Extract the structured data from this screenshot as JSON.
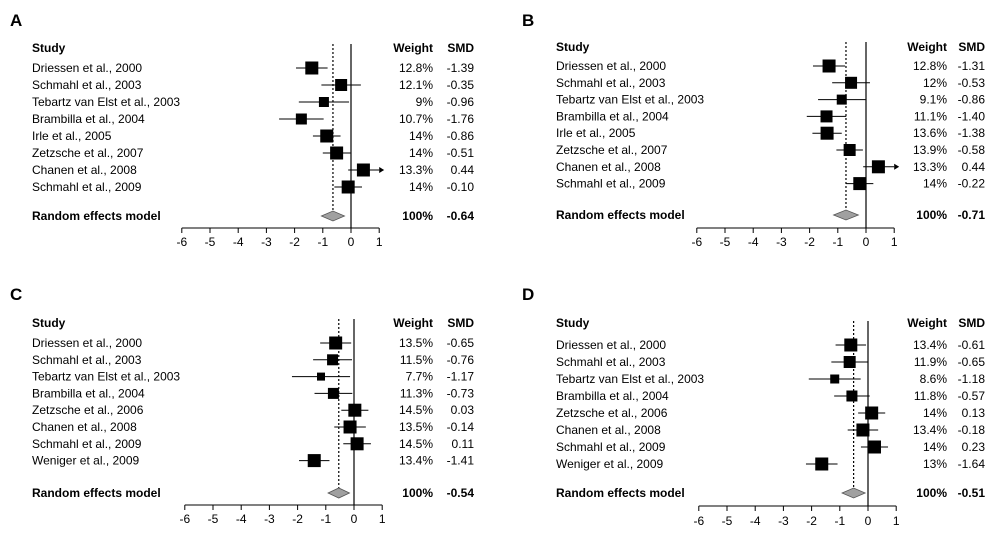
{
  "chart_data": [
    {
      "type": "forest",
      "panel_label": "A",
      "headers": {
        "study": "Study",
        "weight": "Weight",
        "smd": "SMD"
      },
      "xticks": [
        -6,
        -5,
        -4,
        -3,
        -2,
        -1,
        0,
        1
      ],
      "xlim": [
        -6,
        1
      ],
      "null_line": 0,
      "studies": [
        {
          "name": "Driessen et al., 2000",
          "weight": "12.8%",
          "smd": "-1.39",
          "value": -1.39,
          "lo": -1.95,
          "hi": -0.83,
          "size": 13
        },
        {
          "name": "Schmahl et al., 2003",
          "weight": "12.1%",
          "smd": "-0.35",
          "value": -0.35,
          "lo": -1.05,
          "hi": 0.35,
          "size": 12
        },
        {
          "name": "Tebartz van Elst et al., 2003",
          "weight": "9%",
          "smd": "-0.96",
          "value": -0.96,
          "lo": -1.85,
          "hi": -0.07,
          "size": 10
        },
        {
          "name": "Brambilla et al., 2004",
          "weight": "10.7%",
          "smd": "-1.76",
          "value": -1.76,
          "lo": -2.55,
          "hi": -0.97,
          "size": 11
        },
        {
          "name": "Irle et al., 2005",
          "weight": "14%",
          "smd": "-0.86",
          "value": -0.86,
          "lo": -1.35,
          "hi": -0.37,
          "size": 13
        },
        {
          "name": "Zetzsche et al., 2007",
          "weight": "14%",
          "smd": "-0.51",
          "value": -0.51,
          "lo": -1.0,
          "hi": -0.02,
          "size": 13
        },
        {
          "name": "Chanen et al., 2008",
          "weight": "13.3%",
          "smd": "0.44",
          "value": 0.44,
          "lo": -0.1,
          "hi": 1.0,
          "size": 13,
          "arrow": true
        },
        {
          "name": "Schmahl et al., 2009",
          "weight": "14%",
          "smd": "-0.10",
          "value": -0.1,
          "lo": -0.59,
          "hi": 0.39,
          "size": 13
        }
      ],
      "summary": {
        "label": "Random effects model",
        "weight": "100%",
        "smd": "-0.64",
        "value": -0.64,
        "lo": -1.05,
        "hi": -0.23
      }
    },
    {
      "type": "forest",
      "panel_label": "B",
      "headers": {
        "study": "Study",
        "weight": "Weight",
        "smd": "SMD"
      },
      "xticks": [
        -6,
        -5,
        -4,
        -3,
        -2,
        -1,
        0,
        1
      ],
      "xlim": [
        -6,
        1
      ],
      "null_line": 0,
      "studies": [
        {
          "name": "Driessen et al., 2000",
          "weight": "12.8%",
          "smd": "-1.31",
          "value": -1.31,
          "lo": -1.88,
          "hi": -0.74,
          "size": 13
        },
        {
          "name": "Schmahl et al., 2003",
          "weight": "12%",
          "smd": "-0.53",
          "value": -0.53,
          "lo": -1.2,
          "hi": 0.14,
          "size": 12
        },
        {
          "name": "Tebartz van Elst et al., 2003",
          "weight": "9.1%",
          "smd": "-0.86",
          "value": -0.86,
          "lo": -1.7,
          "hi": -0.02,
          "size": 10
        },
        {
          "name": "Brambilla et al., 2004",
          "weight": "11.1%",
          "smd": "-1.40",
          "value": -1.4,
          "lo": -2.1,
          "hi": -0.7,
          "size": 12
        },
        {
          "name": "Irle et al., 2005",
          "weight": "13.6%",
          "smd": "-1.38",
          "value": -1.38,
          "lo": -1.9,
          "hi": -0.86,
          "size": 13
        },
        {
          "name": "Zetzsche et al., 2007",
          "weight": "13.9%",
          "smd": "-0.58",
          "value": -0.58,
          "lo": -1.05,
          "hi": -0.11,
          "size": 12
        },
        {
          "name": "Chanen et al., 2008",
          "weight": "13.3%",
          "smd": "0.44",
          "value": 0.44,
          "lo": -0.1,
          "hi": 1.0,
          "size": 13,
          "arrow": true
        },
        {
          "name": "Schmahl et al., 2009",
          "weight": "14%",
          "smd": "-0.22",
          "value": -0.22,
          "lo": -0.7,
          "hi": 0.26,
          "size": 13
        }
      ],
      "summary": {
        "label": "Random effects model",
        "weight": "100%",
        "smd": "-0.71",
        "value": -0.71,
        "lo": -1.15,
        "hi": -0.27
      }
    },
    {
      "type": "forest",
      "panel_label": "C",
      "headers": {
        "study": "Study",
        "weight": "Weight",
        "smd": "SMD"
      },
      "xticks": [
        -6,
        -5,
        -4,
        -3,
        -2,
        -1,
        0,
        1
      ],
      "xlim": [
        -6,
        1
      ],
      "null_line": 0,
      "studies": [
        {
          "name": "Driessen et al., 2000",
          "weight": "13.5%",
          "smd": "-0.65",
          "value": -0.65,
          "lo": -1.2,
          "hi": -0.1,
          "size": 13
        },
        {
          "name": "Schmahl et al., 2003",
          "weight": "11.5%",
          "smd": "-0.76",
          "value": -0.76,
          "lo": -1.45,
          "hi": -0.07,
          "size": 11
        },
        {
          "name": "Tebartz van Elst et al., 2003",
          "weight": "7.7%",
          "smd": "-1.17",
          "value": -1.17,
          "lo": -2.2,
          "hi": -0.14,
          "size": 8
        },
        {
          "name": "Brambilla et al., 2004",
          "weight": "11.3%",
          "smd": "-0.73",
          "value": -0.73,
          "lo": -1.4,
          "hi": -0.06,
          "size": 11
        },
        {
          "name": "Zetzsche et al., 2006",
          "weight": "14.5%",
          "smd": "0.03",
          "value": 0.03,
          "lo": -0.45,
          "hi": 0.51,
          "size": 13
        },
        {
          "name": "Chanen et al., 2008",
          "weight": "13.5%",
          "smd": "-0.14",
          "value": -0.14,
          "lo": -0.7,
          "hi": 0.42,
          "size": 13
        },
        {
          "name": "Schmahl et al., 2009",
          "weight": "14.5%",
          "smd": "0.11",
          "value": 0.11,
          "lo": -0.38,
          "hi": 0.6,
          "size": 13
        },
        {
          "name": "Weniger et al., 2009",
          "weight": "13.4%",
          "smd": "-1.41",
          "value": -1.41,
          "lo": -1.95,
          "hi": -0.87,
          "size": 13
        }
      ],
      "summary": {
        "label": "Random effects model",
        "weight": "100%",
        "smd": "-0.54",
        "value": -0.54,
        "lo": -0.92,
        "hi": -0.16
      }
    },
    {
      "type": "forest",
      "panel_label": "D",
      "headers": {
        "study": "Study",
        "weight": "Weight",
        "smd": "SMD"
      },
      "xticks": [
        -6,
        -5,
        -4,
        -3,
        -2,
        -1,
        0,
        1
      ],
      "xlim": [
        -6,
        1
      ],
      "null_line": 0,
      "studies": [
        {
          "name": "Driessen et al., 2000",
          "weight": "13.4%",
          "smd": "-0.61",
          "value": -0.61,
          "lo": -1.15,
          "hi": -0.07,
          "size": 13
        },
        {
          "name": "Schmahl et al., 2003",
          "weight": "11.9%",
          "smd": "-0.65",
          "value": -0.65,
          "lo": -1.3,
          "hi": 0.0,
          "size": 12
        },
        {
          "name": "Tebartz van Elst et al., 2003",
          "weight": "8.6%",
          "smd": "-1.18",
          "value": -1.18,
          "lo": -2.1,
          "hi": -0.26,
          "size": 9
        },
        {
          "name": "Brambilla et al., 2004",
          "weight": "11.8%",
          "smd": "-0.57",
          "value": -0.57,
          "lo": -1.2,
          "hi": 0.06,
          "size": 11
        },
        {
          "name": "Zetzsche et al., 2006",
          "weight": "14%",
          "smd": "0.13",
          "value": 0.13,
          "lo": -0.35,
          "hi": 0.61,
          "size": 13
        },
        {
          "name": "Chanen et al., 2008",
          "weight": "13.4%",
          "smd": "-0.18",
          "value": -0.18,
          "lo": -0.72,
          "hi": 0.36,
          "size": 13
        },
        {
          "name": "Schmahl et al., 2009",
          "weight": "14%",
          "smd": "0.23",
          "value": 0.23,
          "lo": -0.25,
          "hi": 0.71,
          "size": 13
        },
        {
          "name": "Weniger et al., 2009",
          "weight": "13%",
          "smd": "-1.64",
          "value": -1.64,
          "lo": -2.2,
          "hi": -1.08,
          "size": 13
        }
      ],
      "summary": {
        "label": "Random effects model",
        "weight": "100%",
        "smd": "-0.51",
        "value": -0.51,
        "lo": -0.92,
        "hi": -0.1
      }
    }
  ],
  "colors": {
    "marker": "#000000",
    "summary_fill": "#a0a0a0",
    "line": "#000000"
  }
}
